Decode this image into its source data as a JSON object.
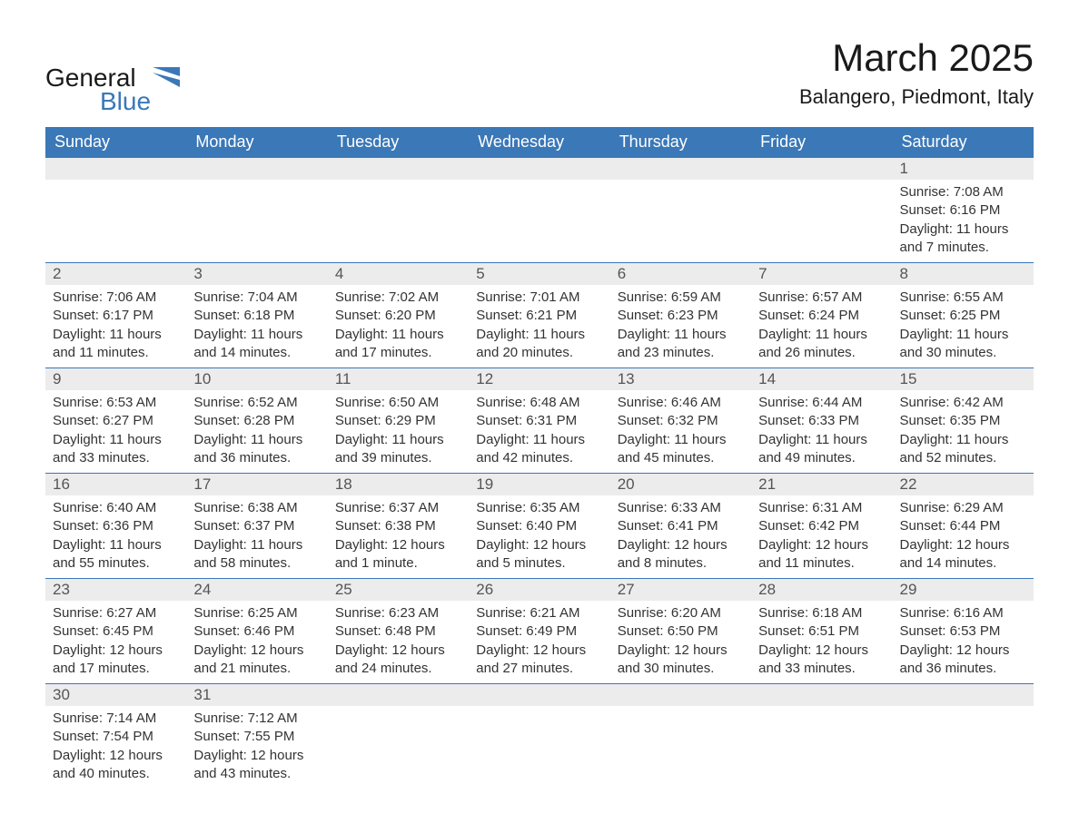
{
  "brand": {
    "word1": "General",
    "word2": "Blue",
    "color_text": "#1a1a1a",
    "color_accent": "#3a78b8"
  },
  "title": "March 2025",
  "location": "Balangero, Piedmont, Italy",
  "weekday_headers": [
    "Sunday",
    "Monday",
    "Tuesday",
    "Wednesday",
    "Thursday",
    "Friday",
    "Saturday"
  ],
  "colors": {
    "header_bg": "#3a78b8",
    "header_text": "#ffffff",
    "daynum_bg": "#ececec",
    "daynum_text": "#555555",
    "body_text": "#333333",
    "border": "#3a78b8",
    "page_bg": "#ffffff"
  },
  "typography": {
    "title_fontsize": 42,
    "location_fontsize": 22,
    "header_fontsize": 18,
    "daynum_fontsize": 17,
    "body_fontsize": 15
  },
  "layout": {
    "columns": 7,
    "rows": 6
  },
  "weeks": [
    [
      {
        "day": null
      },
      {
        "day": null
      },
      {
        "day": null
      },
      {
        "day": null
      },
      {
        "day": null
      },
      {
        "day": null
      },
      {
        "day": "1",
        "sunrise": "Sunrise: 7:08 AM",
        "sunset": "Sunset: 6:16 PM",
        "daylight1": "Daylight: 11 hours",
        "daylight2": "and 7 minutes."
      }
    ],
    [
      {
        "day": "2",
        "sunrise": "Sunrise: 7:06 AM",
        "sunset": "Sunset: 6:17 PM",
        "daylight1": "Daylight: 11 hours",
        "daylight2": "and 11 minutes."
      },
      {
        "day": "3",
        "sunrise": "Sunrise: 7:04 AM",
        "sunset": "Sunset: 6:18 PM",
        "daylight1": "Daylight: 11 hours",
        "daylight2": "and 14 minutes."
      },
      {
        "day": "4",
        "sunrise": "Sunrise: 7:02 AM",
        "sunset": "Sunset: 6:20 PM",
        "daylight1": "Daylight: 11 hours",
        "daylight2": "and 17 minutes."
      },
      {
        "day": "5",
        "sunrise": "Sunrise: 7:01 AM",
        "sunset": "Sunset: 6:21 PM",
        "daylight1": "Daylight: 11 hours",
        "daylight2": "and 20 minutes."
      },
      {
        "day": "6",
        "sunrise": "Sunrise: 6:59 AM",
        "sunset": "Sunset: 6:23 PM",
        "daylight1": "Daylight: 11 hours",
        "daylight2": "and 23 minutes."
      },
      {
        "day": "7",
        "sunrise": "Sunrise: 6:57 AM",
        "sunset": "Sunset: 6:24 PM",
        "daylight1": "Daylight: 11 hours",
        "daylight2": "and 26 minutes."
      },
      {
        "day": "8",
        "sunrise": "Sunrise: 6:55 AM",
        "sunset": "Sunset: 6:25 PM",
        "daylight1": "Daylight: 11 hours",
        "daylight2": "and 30 minutes."
      }
    ],
    [
      {
        "day": "9",
        "sunrise": "Sunrise: 6:53 AM",
        "sunset": "Sunset: 6:27 PM",
        "daylight1": "Daylight: 11 hours",
        "daylight2": "and 33 minutes."
      },
      {
        "day": "10",
        "sunrise": "Sunrise: 6:52 AM",
        "sunset": "Sunset: 6:28 PM",
        "daylight1": "Daylight: 11 hours",
        "daylight2": "and 36 minutes."
      },
      {
        "day": "11",
        "sunrise": "Sunrise: 6:50 AM",
        "sunset": "Sunset: 6:29 PM",
        "daylight1": "Daylight: 11 hours",
        "daylight2": "and 39 minutes."
      },
      {
        "day": "12",
        "sunrise": "Sunrise: 6:48 AM",
        "sunset": "Sunset: 6:31 PM",
        "daylight1": "Daylight: 11 hours",
        "daylight2": "and 42 minutes."
      },
      {
        "day": "13",
        "sunrise": "Sunrise: 6:46 AM",
        "sunset": "Sunset: 6:32 PM",
        "daylight1": "Daylight: 11 hours",
        "daylight2": "and 45 minutes."
      },
      {
        "day": "14",
        "sunrise": "Sunrise: 6:44 AM",
        "sunset": "Sunset: 6:33 PM",
        "daylight1": "Daylight: 11 hours",
        "daylight2": "and 49 minutes."
      },
      {
        "day": "15",
        "sunrise": "Sunrise: 6:42 AM",
        "sunset": "Sunset: 6:35 PM",
        "daylight1": "Daylight: 11 hours",
        "daylight2": "and 52 minutes."
      }
    ],
    [
      {
        "day": "16",
        "sunrise": "Sunrise: 6:40 AM",
        "sunset": "Sunset: 6:36 PM",
        "daylight1": "Daylight: 11 hours",
        "daylight2": "and 55 minutes."
      },
      {
        "day": "17",
        "sunrise": "Sunrise: 6:38 AM",
        "sunset": "Sunset: 6:37 PM",
        "daylight1": "Daylight: 11 hours",
        "daylight2": "and 58 minutes."
      },
      {
        "day": "18",
        "sunrise": "Sunrise: 6:37 AM",
        "sunset": "Sunset: 6:38 PM",
        "daylight1": "Daylight: 12 hours",
        "daylight2": "and 1 minute."
      },
      {
        "day": "19",
        "sunrise": "Sunrise: 6:35 AM",
        "sunset": "Sunset: 6:40 PM",
        "daylight1": "Daylight: 12 hours",
        "daylight2": "and 5 minutes."
      },
      {
        "day": "20",
        "sunrise": "Sunrise: 6:33 AM",
        "sunset": "Sunset: 6:41 PM",
        "daylight1": "Daylight: 12 hours",
        "daylight2": "and 8 minutes."
      },
      {
        "day": "21",
        "sunrise": "Sunrise: 6:31 AM",
        "sunset": "Sunset: 6:42 PM",
        "daylight1": "Daylight: 12 hours",
        "daylight2": "and 11 minutes."
      },
      {
        "day": "22",
        "sunrise": "Sunrise: 6:29 AM",
        "sunset": "Sunset: 6:44 PM",
        "daylight1": "Daylight: 12 hours",
        "daylight2": "and 14 minutes."
      }
    ],
    [
      {
        "day": "23",
        "sunrise": "Sunrise: 6:27 AM",
        "sunset": "Sunset: 6:45 PM",
        "daylight1": "Daylight: 12 hours",
        "daylight2": "and 17 minutes."
      },
      {
        "day": "24",
        "sunrise": "Sunrise: 6:25 AM",
        "sunset": "Sunset: 6:46 PM",
        "daylight1": "Daylight: 12 hours",
        "daylight2": "and 21 minutes."
      },
      {
        "day": "25",
        "sunrise": "Sunrise: 6:23 AM",
        "sunset": "Sunset: 6:48 PM",
        "daylight1": "Daylight: 12 hours",
        "daylight2": "and 24 minutes."
      },
      {
        "day": "26",
        "sunrise": "Sunrise: 6:21 AM",
        "sunset": "Sunset: 6:49 PM",
        "daylight1": "Daylight: 12 hours",
        "daylight2": "and 27 minutes."
      },
      {
        "day": "27",
        "sunrise": "Sunrise: 6:20 AM",
        "sunset": "Sunset: 6:50 PM",
        "daylight1": "Daylight: 12 hours",
        "daylight2": "and 30 minutes."
      },
      {
        "day": "28",
        "sunrise": "Sunrise: 6:18 AM",
        "sunset": "Sunset: 6:51 PM",
        "daylight1": "Daylight: 12 hours",
        "daylight2": "and 33 minutes."
      },
      {
        "day": "29",
        "sunrise": "Sunrise: 6:16 AM",
        "sunset": "Sunset: 6:53 PM",
        "daylight1": "Daylight: 12 hours",
        "daylight2": "and 36 minutes."
      }
    ],
    [
      {
        "day": "30",
        "sunrise": "Sunrise: 7:14 AM",
        "sunset": "Sunset: 7:54 PM",
        "daylight1": "Daylight: 12 hours",
        "daylight2": "and 40 minutes."
      },
      {
        "day": "31",
        "sunrise": "Sunrise: 7:12 AM",
        "sunset": "Sunset: 7:55 PM",
        "daylight1": "Daylight: 12 hours",
        "daylight2": "and 43 minutes."
      },
      {
        "day": null
      },
      {
        "day": null
      },
      {
        "day": null
      },
      {
        "day": null
      },
      {
        "day": null
      }
    ]
  ]
}
